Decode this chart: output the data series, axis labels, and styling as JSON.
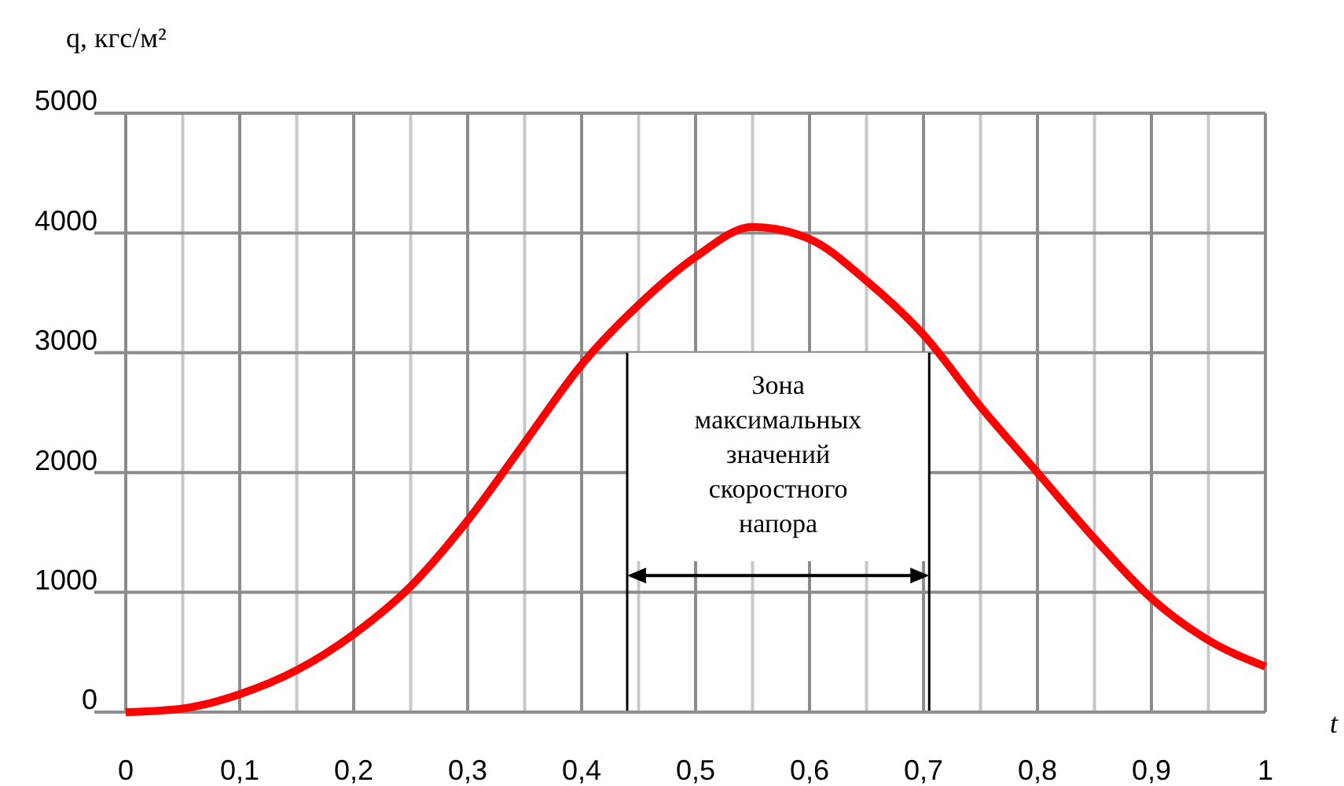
{
  "chart_data": {
    "type": "line",
    "ylabel": "q, кгс/м²",
    "xlabel": "t",
    "x": [
      0,
      0.05,
      0.1,
      0.15,
      0.2,
      0.25,
      0.3,
      0.35,
      0.4,
      0.45,
      0.5,
      0.55,
      0.6,
      0.65,
      0.7,
      0.75,
      0.8,
      0.85,
      0.9,
      0.95,
      1
    ],
    "series": [
      {
        "color": "#ff0000",
        "values": [
          0,
          30,
          150,
          350,
          650,
          1050,
          1600,
          2250,
          2900,
          3400,
          3800,
          4050,
          3950,
          3600,
          3150,
          2550,
          2000,
          1450,
          950,
          600,
          380
        ]
      }
    ],
    "xlim": [
      0,
      1
    ],
    "xticks": [
      {
        "value": 0,
        "label": "0"
      },
      {
        "value": 0.05,
        "label": null
      },
      {
        "value": 0.1,
        "label": "0,1"
      },
      {
        "value": 0.15,
        "label": null
      },
      {
        "value": 0.2,
        "label": "0,2"
      },
      {
        "value": 0.25,
        "label": null
      },
      {
        "value": 0.3,
        "label": "0,3"
      },
      {
        "value": 0.35,
        "label": null
      },
      {
        "value": 0.4,
        "label": "0,4"
      },
      {
        "value": 0.45,
        "label": null
      },
      {
        "value": 0.5,
        "label": "0,5"
      },
      {
        "value": 0.55,
        "label": null
      },
      {
        "value": 0.6,
        "label": "0,6"
      },
      {
        "value": 0.65,
        "label": null
      },
      {
        "value": 0.7,
        "label": "0,7"
      },
      {
        "value": 0.75,
        "label": null
      },
      {
        "value": 0.8,
        "label": "0,8"
      },
      {
        "value": 0.85,
        "label": null
      },
      {
        "value": 0.9,
        "label": "0,9"
      },
      {
        "value": 0.95,
        "label": null
      },
      {
        "value": 1,
        "label": "1"
      }
    ],
    "ylim": [
      0,
      5000
    ],
    "yticks": [
      0,
      1000,
      2000,
      3000,
      4000,
      5000
    ],
    "grid": true,
    "marker": "none",
    "line_style": "solid",
    "bands": [
      {
        "axis": "x",
        "from": 0.44,
        "to": 0.705,
        "label": "Зона максимальных значений скоростного напора",
        "color": "#ffffff"
      }
    ]
  }
}
